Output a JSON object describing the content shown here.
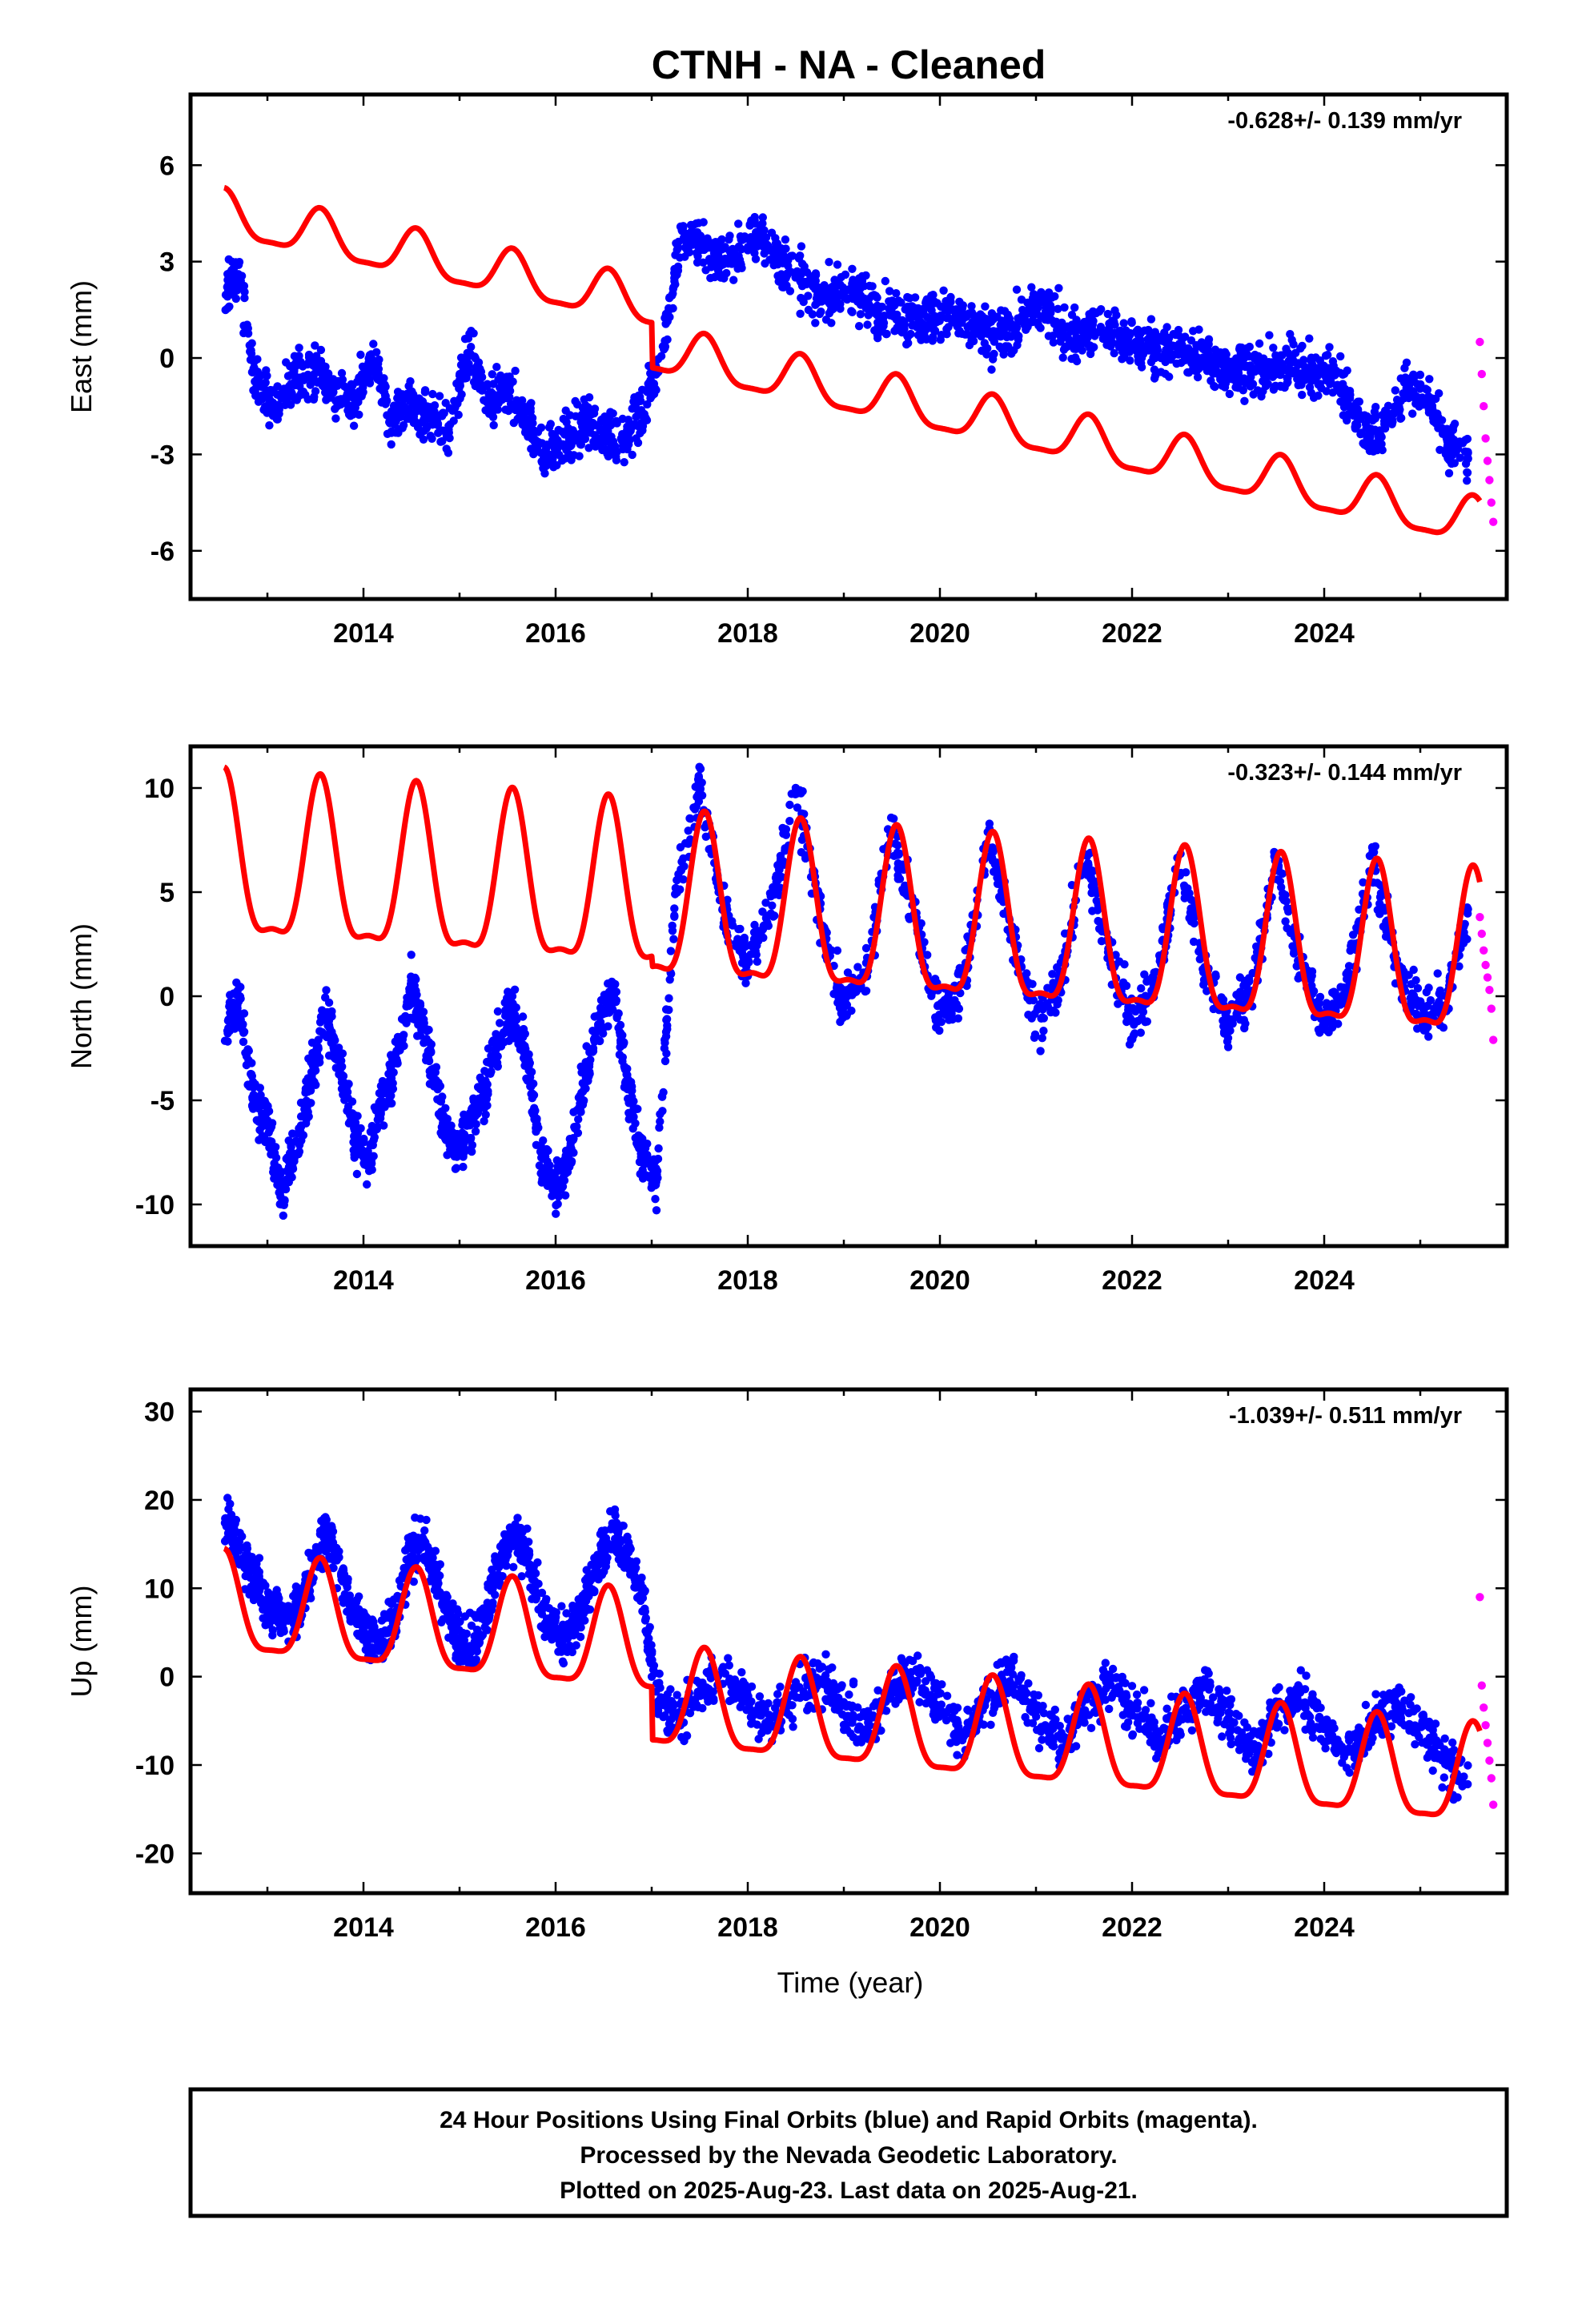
{
  "title": "CTNH  - NA - Cleaned",
  "xlabel": "Time (year)",
  "footer": {
    "line1": "24 Hour Positions Using Final Orbits (blue) and Rapid Orbits (magenta).",
    "line2": "Processed by the Nevada Geodetic Laboratory.",
    "line3": "Plotted on 2025-Aug-23. Last data on 2025-Aug-21."
  },
  "colors": {
    "final": "#0000ff",
    "rapid": "#ff00ff",
    "model": "#ff0000",
    "frame": "#000000"
  },
  "chart_data": [
    {
      "type": "scatter",
      "ylabel": "East (mm)",
      "rate": "-0.628+/- 0.139 mm/yr",
      "xlim": [
        2012.2,
        2025.9
      ],
      "ylim": [
        -7.5,
        8.2
      ],
      "xticks": [
        "2014",
        "2016",
        "2018",
        "2020",
        "2022",
        "2024"
      ],
      "yticks": [
        "6",
        "3",
        "0",
        "-3",
        "-6"
      ],
      "final_orbit_series": {
        "x": [
          2012.55,
          2012.7,
          2012.9,
          2013.1,
          2013.3,
          2013.5,
          2013.7,
          2013.9,
          2014.1,
          2014.3,
          2014.5,
          2014.7,
          2014.9,
          2015.1,
          2015.3,
          2015.5,
          2015.7,
          2015.9,
          2016.1,
          2016.3,
          2016.5,
          2016.7,
          2016.9,
          2017.1,
          2017.3,
          2017.5,
          2017.7,
          2017.9,
          2018.1,
          2018.3,
          2018.5,
          2018.7,
          2018.9,
          2019.1,
          2019.3,
          2019.5,
          2019.7,
          2019.9,
          2020.1,
          2020.3,
          2020.5,
          2020.7,
          2020.9,
          2021.1,
          2021.3,
          2021.5,
          2021.7,
          2021.9,
          2022.1,
          2022.3,
          2022.5,
          2022.7,
          2022.9,
          2023.1,
          2023.3,
          2023.5,
          2023.7,
          2023.9,
          2024.1,
          2024.3,
          2024.5,
          2024.7,
          2024.9,
          2025.1,
          2025.3,
          2025.5
        ],
        "y": [
          2.0,
          2.6,
          -1.0,
          -1.5,
          -0.5,
          -0.4,
          -1.0,
          -1.3,
          -0.2,
          -1.8,
          -1.4,
          -1.9,
          -2.2,
          0.2,
          -1.4,
          -1.0,
          -1.9,
          -3.0,
          -2.6,
          -2.0,
          -2.3,
          -2.5,
          -1.7,
          0.0,
          3.8,
          3.6,
          3.0,
          3.3,
          3.9,
          3.2,
          2.5,
          2.0,
          1.9,
          2.1,
          1.6,
          1.4,
          1.3,
          1.2,
          1.4,
          1.0,
          0.6,
          0.8,
          1.3,
          1.5,
          0.9,
          0.7,
          0.9,
          0.6,
          0.4,
          0.3,
          0.2,
          0.0,
          -0.2,
          -0.3,
          -0.4,
          -0.3,
          -0.2,
          -0.6,
          -0.4,
          -1.5,
          -2.5,
          -1.8,
          -0.8,
          -1.4,
          -2.8,
          -3.0
        ]
      },
      "rapid_orbit_series": {
        "x": [
          2025.62,
          2025.64,
          2025.66,
          2025.68,
          2025.7,
          2025.72,
          2025.74,
          2025.76
        ],
        "y": [
          0.5,
          -0.5,
          -1.5,
          -2.5,
          -3.2,
          -3.8,
          -4.5,
          -5.1
        ]
      },
      "model": {
        "kind": "rate-plus-seasonal",
        "t0": 2012.55,
        "offset_at_t0": 4.4,
        "rate_mm_per_yr": -0.628,
        "break_time": 2017.0,
        "break_size": 1.4,
        "annual_amplitude": 0.7,
        "semiannual_amplitude": 0.2
      }
    },
    {
      "type": "scatter",
      "ylabel": "North (mm)",
      "rate": "-0.323+/- 0.144 mm/yr",
      "xlim": [
        2012.2,
        2025.9
      ],
      "ylim": [
        -12.0,
        12.0
      ],
      "xticks": [
        "2014",
        "2016",
        "2018",
        "2020",
        "2022",
        "2024"
      ],
      "yticks": [
        "10",
        "5",
        "0",
        "-5",
        "-10"
      ],
      "final_orbit_series": {
        "x": [
          2012.55,
          2012.7,
          2012.85,
          2013.0,
          2013.15,
          2013.3,
          2013.45,
          2013.6,
          2013.75,
          2013.9,
          2014.05,
          2014.2,
          2014.35,
          2014.5,
          2014.65,
          2014.8,
          2014.95,
          2015.1,
          2015.25,
          2015.4,
          2015.55,
          2015.7,
          2015.85,
          2016.0,
          2016.15,
          2016.3,
          2016.45,
          2016.6,
          2016.75,
          2016.9,
          2017.05,
          2017.25,
          2017.5,
          2017.75,
          2018.0,
          2018.25,
          2018.5,
          2018.75,
          2019.0,
          2019.25,
          2019.5,
          2019.75,
          2020.0,
          2020.25,
          2020.5,
          2020.75,
          2021.0,
          2021.25,
          2021.5,
          2021.75,
          2022.0,
          2022.25,
          2022.5,
          2022.75,
          2023.0,
          2023.25,
          2023.5,
          2023.75,
          2024.0,
          2024.25,
          2024.5,
          2024.75,
          2025.0,
          2025.25,
          2025.5
        ],
        "y": [
          -1.5,
          -0.2,
          -4.6,
          -6.2,
          -9.5,
          -7.3,
          -4.1,
          -0.7,
          -3.0,
          -6.5,
          -8.0,
          -5.0,
          -3.0,
          0.3,
          -2.0,
          -5.3,
          -7.6,
          -6.4,
          -4.8,
          -2.2,
          -0.8,
          -3.1,
          -7.6,
          -9.3,
          -7.7,
          -4.0,
          -1.2,
          0.3,
          -4.5,
          -7.7,
          -8.8,
          5.0,
          10.2,
          4.0,
          1.6,
          4.4,
          9.8,
          4.0,
          -0.7,
          1.4,
          8.3,
          3.5,
          -0.9,
          0.7,
          7.8,
          2.8,
          -1.5,
          0.6,
          6.8,
          2.2,
          -1.2,
          0.9,
          6.3,
          1.4,
          -1.4,
          0.6,
          6.4,
          1.4,
          -1.1,
          0.8,
          6.6,
          1.3,
          -0.8,
          -0.5,
          4.0
        ]
      },
      "rapid_orbit_series": {
        "x": [
          2025.62,
          2025.64,
          2025.66,
          2025.68,
          2025.7,
          2025.72,
          2025.74,
          2025.76
        ],
        "y": [
          3.8,
          3.0,
          2.2,
          1.5,
          0.9,
          0.3,
          -0.6,
          -2.1
        ]
      },
      "model": {
        "kind": "rate-plus-seasonal",
        "t0": 2012.55,
        "offset_at_t0": 6.0,
        "rate_mm_per_yr": -0.323,
        "break_time": 2017.0,
        "break_size": 0.5,
        "annual_amplitude": 3.8,
        "semiannual_amplitude": 1.2
      }
    },
    {
      "type": "scatter",
      "ylabel": "Up (mm)",
      "rate": "-1.039+/- 0.511 mm/yr",
      "xlim": [
        2012.2,
        2025.9
      ],
      "ylim": [
        -24.5,
        32.5
      ],
      "xticks": [
        "2014",
        "2016",
        "2018",
        "2020",
        "2022",
        "2024"
      ],
      "yticks": [
        "30",
        "20",
        "10",
        "0",
        "-10",
        "-20"
      ],
      "final_orbit_series": {
        "x": [
          2012.55,
          2012.7,
          2012.85,
          2013.0,
          2013.15,
          2013.3,
          2013.45,
          2013.6,
          2013.75,
          2013.9,
          2014.05,
          2014.2,
          2014.35,
          2014.5,
          2014.65,
          2014.8,
          2014.95,
          2015.1,
          2015.25,
          2015.4,
          2015.55,
          2015.7,
          2015.85,
          2016.0,
          2016.15,
          2016.3,
          2016.45,
          2016.6,
          2016.75,
          2016.9,
          2017.05,
          2017.25,
          2017.5,
          2017.75,
          2018.0,
          2018.25,
          2018.5,
          2018.75,
          2019.0,
          2019.25,
          2019.5,
          2019.75,
          2020.0,
          2020.25,
          2020.5,
          2020.75,
          2021.0,
          2021.25,
          2021.5,
          2021.75,
          2022.0,
          2022.25,
          2022.5,
          2022.75,
          2023.0,
          2023.25,
          2023.5,
          2023.75,
          2024.0,
          2024.25,
          2024.5,
          2024.75,
          2025.0,
          2025.25,
          2025.5
        ],
        "y": [
          17.5,
          15.0,
          12.0,
          8.0,
          6.0,
          7.5,
          11.0,
          16.5,
          12.0,
          7.5,
          4.5,
          4.0,
          7.5,
          14.5,
          15.0,
          9.5,
          5.5,
          3.0,
          6.0,
          12.5,
          16.0,
          13.5,
          7.0,
          5.0,
          5.0,
          8.0,
          13.5,
          16.5,
          14.0,
          9.0,
          -2.0,
          -4.5,
          -2.5,
          0.5,
          -3.0,
          -5.0,
          -2.0,
          0.0,
          -3.5,
          -6.0,
          -1.5,
          0.5,
          -3.0,
          -6.5,
          -2.5,
          0.0,
          -4.0,
          -7.5,
          -4.0,
          -1.0,
          -3.5,
          -7.0,
          -4.5,
          -1.5,
          -4.5,
          -8.5,
          -4.5,
          -1.5,
          -6.0,
          -9.0,
          -5.5,
          -3.0,
          -6.0,
          -9.5,
          -12.0
        ]
      },
      "rapid_orbit_series": {
        "x": [
          2025.62,
          2025.64,
          2025.66,
          2025.68,
          2025.7,
          2025.72,
          2025.74,
          2025.76
        ],
        "y": [
          9.0,
          -1.0,
          -3.5,
          -5.5,
          -7.5,
          -9.5,
          -11.5,
          -14.5
        ]
      },
      "model": {
        "kind": "rate-plus-seasonal",
        "t0": 2012.55,
        "offset_at_t0": 7.5,
        "rate_mm_per_yr": -1.039,
        "break_time": 2017.0,
        "break_size": 6.0,
        "annual_amplitude": 5.5,
        "semiannual_amplitude": 1.5
      }
    }
  ]
}
